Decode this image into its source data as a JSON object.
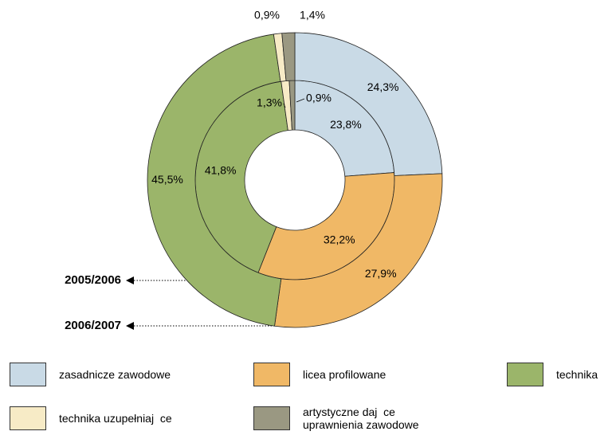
{
  "chart_data": {
    "type": "donut",
    "categories": [
      "zasadnicze zawodowe",
      "licea profilowane",
      "technika",
      "technika uzupełniaj  ce",
      "artystyczne daj  ce uprawnienia zawodowe"
    ],
    "colors": [
      "#c9dae6",
      "#f0b866",
      "#9bb56a",
      "#f7ebc6",
      "#9a9882"
    ],
    "series": [
      {
        "name": "2005/2006",
        "values": [
          23.8,
          32.2,
          41.8,
          1.3,
          0.9
        ],
        "value_labels": [
          "23,8%",
          "32,2%",
          "41,8%",
          "1,3%",
          "0,9%"
        ]
      },
      {
        "name": "2006/2007",
        "values": [
          24.3,
          27.9,
          45.5,
          0.9,
          1.4
        ],
        "value_labels": [
          "24,3%",
          "27,9%",
          "45,5%",
          "0,9%",
          "1,4%"
        ]
      }
    ]
  }
}
